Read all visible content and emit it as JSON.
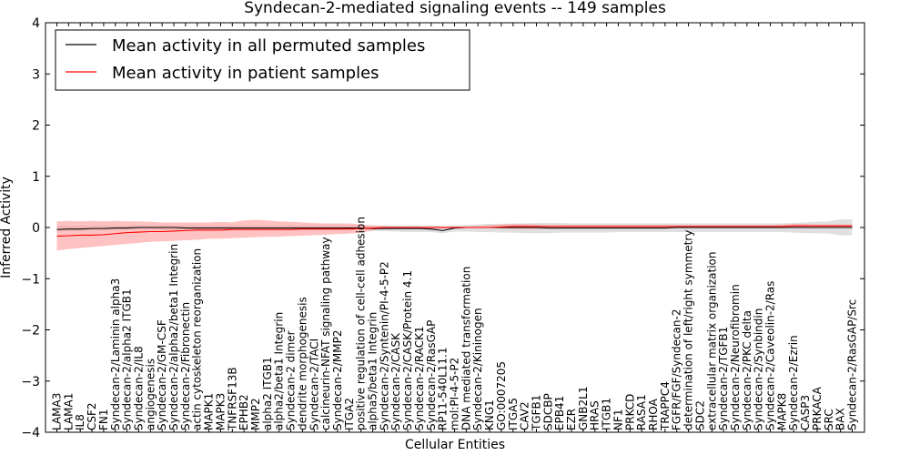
{
  "chart_data": {
    "type": "line",
    "title": "Syndecan-2-mediated signaling events -- 149 samples",
    "xlabel": "Cellular Entities",
    "ylabel": "Inferred Activity",
    "ylim": [
      -4,
      4
    ],
    "yticks": [
      -4,
      -3,
      -2,
      -1,
      0,
      1,
      2,
      3,
      4
    ],
    "legend_position": "top-left",
    "categories": [
      "LAMA3",
      "LAMA1",
      "IL8",
      "CSF2",
      "FN1",
      "Syndecan-2/Laminin alpha3",
      "Syndecan-2/alpha2 ITGB1",
      "Syndecan-2/IL8",
      "angiogenesis",
      "Syndecan-2/GM-CSF",
      "Syndecan-2/alpha2/beta1 Integrin",
      "Syndecan-2/Fibronectin",
      "actin cytoskeleton reorganization",
      "MAPK1",
      "MAPK3",
      "TNFRSF13B",
      "EPHB2",
      "MMP2",
      "alpha2 ITGB1",
      "alpha2/beta1 Integrin",
      "Syndecan-2 dimer",
      "dendrite morphogenesis",
      "Syndecan-2/TACI",
      "calcineurin-NFAT signaling pathway",
      "Syndecan-2/MMP2",
      "ITGA2",
      "positive regulation of cell-cell adhesion",
      "alpha5/beta1 Integrin",
      "Syndecan-2/Syntenin/PI-4-5-P2",
      "Syndecan-2/CASK",
      "Syndecan-2/CASK/Protein 4.1",
      "Syndecan-2/RACK1",
      "Syndecan-2/RasGAP",
      "RP11-540L11.1",
      "mol:PI-4-5-P2",
      "DNA mediated transformation",
      "Syndecan-2/Kininogen",
      "KNG1",
      "GO:0007205",
      "ITGA5",
      "CAV2",
      "TGFB1",
      "SDCBP",
      "EPB41",
      "EZR",
      "GNB2L1",
      "HRAS",
      "ITGB1",
      "NF1",
      "PRKCD",
      "RASA1",
      "RHOA",
      "TRAPPC4",
      "FGFR/FGF/Syndecan-2",
      "determination of left/right symmetry",
      "SDC2",
      "extracellular matrix organization",
      "Syndecan-2/TGFB1",
      "Syndecan-2/Neurofibromin",
      "Syndecan-2/PKC delta",
      "Syndecan-2/Synbindin",
      "Syndecan-2/Caveolin-2/Ras",
      "MAPK8",
      "Syndecan-2/Ezrin",
      "CASP3",
      "PRKACA",
      "SRC",
      "BAX",
      "Syndecan-2/RasGAP/Src"
    ],
    "series": [
      {
        "name": "Mean activity in all permuted samples",
        "color": "#000000",
        "values": [
          -0.04,
          -0.03,
          -0.03,
          -0.02,
          -0.02,
          -0.01,
          -0.01,
          0.0,
          0.0,
          0.0,
          0.0,
          -0.01,
          -0.01,
          -0.01,
          -0.01,
          -0.01,
          -0.01,
          -0.01,
          -0.01,
          -0.01,
          -0.01,
          -0.01,
          -0.01,
          -0.01,
          -0.01,
          -0.01,
          -0.01,
          -0.02,
          -0.02,
          -0.02,
          -0.02,
          -0.02,
          -0.03,
          -0.06,
          -0.01,
          0.0,
          0.0,
          0.0,
          0.0,
          0.0,
          0.0,
          0.0,
          -0.01,
          -0.01,
          -0.01,
          -0.01,
          -0.01,
          -0.01,
          -0.01,
          -0.01,
          -0.01,
          -0.01,
          -0.01,
          0.0,
          0.0,
          0.0,
          0.0,
          0.0,
          0.0,
          0.0,
          0.0,
          0.0,
          0.0,
          0.0,
          0.0,
          0.0,
          0.0,
          0.0,
          0.0
        ],
        "band": {
          "color": "#cccccc",
          "lower": [
            -0.08,
            -0.07,
            -0.07,
            -0.06,
            -0.06,
            -0.05,
            -0.05,
            -0.04,
            -0.04,
            -0.05,
            -0.05,
            -0.05,
            -0.05,
            -0.05,
            -0.05,
            -0.05,
            -0.05,
            -0.05,
            -0.05,
            -0.05,
            -0.05,
            -0.05,
            -0.05,
            -0.05,
            -0.05,
            -0.05,
            -0.05,
            -0.06,
            -0.07,
            -0.08,
            -0.09,
            -0.09,
            -0.09,
            -0.11,
            -0.08,
            -0.08,
            -0.09,
            -0.09,
            -0.1,
            -0.1,
            -0.11,
            -0.11,
            -0.11,
            -0.1,
            -0.1,
            -0.1,
            -0.1,
            -0.1,
            -0.09,
            -0.09,
            -0.09,
            -0.09,
            -0.09,
            -0.09,
            -0.09,
            -0.09,
            -0.09,
            -0.09,
            -0.09,
            -0.09,
            -0.09,
            -0.09,
            -0.09,
            -0.1,
            -0.11,
            -0.11,
            -0.12,
            -0.15,
            -0.15
          ],
          "upper": [
            0.04,
            0.04,
            0.04,
            0.04,
            0.04,
            0.04,
            0.04,
            0.04,
            0.04,
            0.04,
            0.04,
            0.04,
            0.04,
            0.04,
            0.04,
            0.04,
            0.04,
            0.04,
            0.04,
            0.04,
            0.04,
            0.04,
            0.04,
            0.04,
            0.04,
            0.04,
            0.04,
            0.04,
            0.04,
            0.04,
            0.04,
            0.04,
            0.04,
            0.03,
            0.04,
            0.05,
            0.06,
            0.07,
            0.07,
            0.08,
            0.08,
            0.09,
            0.09,
            0.09,
            0.08,
            0.08,
            0.08,
            0.08,
            0.08,
            0.08,
            0.08,
            0.08,
            0.08,
            0.08,
            0.08,
            0.08,
            0.08,
            0.08,
            0.08,
            0.08,
            0.08,
            0.08,
            0.08,
            0.09,
            0.1,
            0.11,
            0.12,
            0.16,
            0.16
          ]
        }
      },
      {
        "name": "Mean activity in patient samples",
        "color": "#ff0000",
        "values": [
          -0.17,
          -0.16,
          -0.15,
          -0.15,
          -0.14,
          -0.12,
          -0.1,
          -0.09,
          -0.08,
          -0.08,
          -0.07,
          -0.06,
          -0.05,
          -0.05,
          -0.05,
          -0.04,
          -0.04,
          -0.04,
          -0.04,
          -0.04,
          -0.04,
          -0.03,
          -0.03,
          -0.03,
          -0.03,
          -0.03,
          -0.02,
          -0.01,
          0.0,
          0.0,
          0.0,
          0.0,
          0.0,
          0.0,
          0.0,
          0.0,
          0.0,
          0.0,
          0.01,
          0.02,
          0.02,
          0.02,
          0.02,
          0.02,
          0.02,
          0.02,
          0.02,
          0.02,
          0.02,
          0.02,
          0.02,
          0.02,
          0.02,
          0.02,
          0.02,
          0.02,
          0.02,
          0.02,
          0.02,
          0.02,
          0.02,
          0.02,
          0.02,
          0.03,
          0.03,
          0.03,
          0.03,
          0.03,
          0.03
        ],
        "band": {
          "color": "#ff9999",
          "lower": [
            -0.45,
            -0.42,
            -0.4,
            -0.38,
            -0.36,
            -0.34,
            -0.32,
            -0.3,
            -0.28,
            -0.27,
            -0.26,
            -0.25,
            -0.24,
            -0.22,
            -0.22,
            -0.21,
            -0.2,
            -0.19,
            -0.18,
            -0.18,
            -0.17,
            -0.16,
            -0.15,
            -0.14,
            -0.13,
            -0.12,
            -0.1,
            -0.06,
            -0.03,
            -0.02,
            -0.02,
            -0.02,
            -0.02,
            -0.02,
            -0.01,
            -0.01,
            -0.01,
            -0.01,
            -0.02,
            -0.03,
            -0.03,
            -0.03,
            -0.02,
            -0.02,
            -0.01,
            -0.01,
            -0.01,
            -0.01,
            -0.01,
            -0.01,
            -0.01,
            -0.01,
            -0.01,
            -0.01,
            -0.01,
            -0.01,
            -0.01,
            -0.01,
            -0.01,
            -0.01,
            -0.01,
            -0.01,
            -0.01,
            -0.01,
            -0.01,
            -0.01,
            -0.01,
            -0.01,
            -0.01
          ],
          "upper": [
            0.12,
            0.13,
            0.12,
            0.13,
            0.12,
            0.13,
            0.12,
            0.12,
            0.11,
            0.1,
            0.1,
            0.1,
            0.1,
            0.1,
            0.11,
            0.1,
            0.14,
            0.15,
            0.14,
            0.12,
            0.11,
            0.1,
            0.09,
            0.08,
            0.08,
            0.08,
            0.06,
            0.04,
            0.03,
            0.02,
            0.02,
            0.02,
            0.02,
            0.02,
            0.02,
            0.02,
            0.03,
            0.05,
            0.06,
            0.07,
            0.07,
            0.06,
            0.05,
            0.05,
            0.05,
            0.05,
            0.05,
            0.05,
            0.05,
            0.05,
            0.05,
            0.05,
            0.05,
            0.05,
            0.05,
            0.05,
            0.05,
            0.05,
            0.05,
            0.05,
            0.05,
            0.05,
            0.06,
            0.07,
            0.07,
            0.06,
            0.06,
            0.06,
            0.06
          ]
        }
      }
    ]
  }
}
